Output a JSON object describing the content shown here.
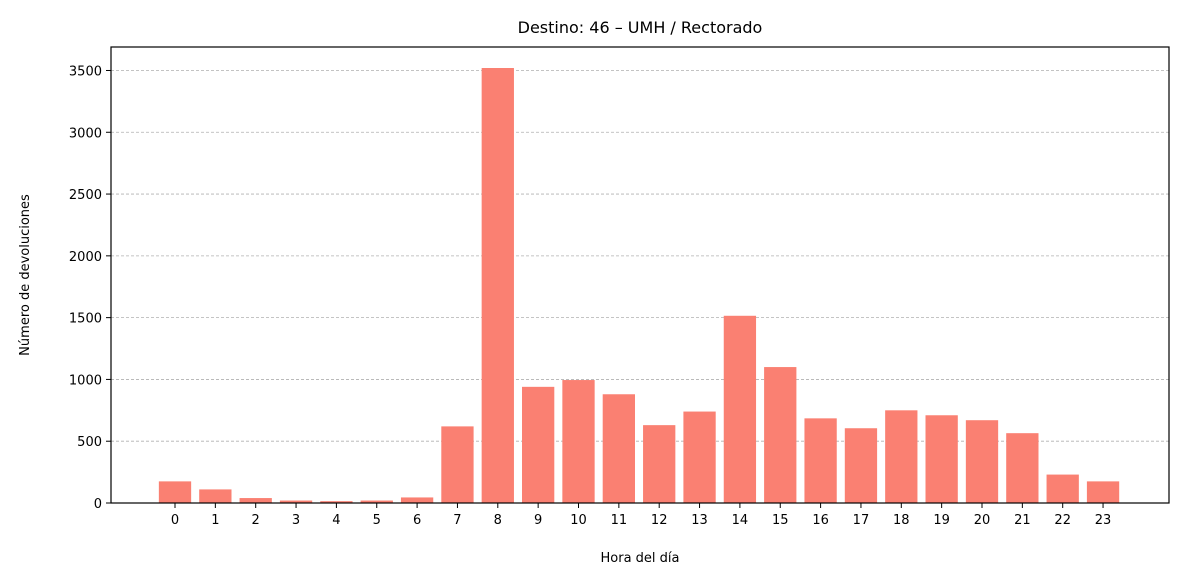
{
  "chart_data": {
    "type": "bar",
    "title": "Destino: 46 – UMH / Rectorado",
    "xlabel": "Hora del día",
    "ylabel": "Número de devoluciones",
    "categories": [
      "0",
      "1",
      "2",
      "3",
      "4",
      "5",
      "6",
      "7",
      "8",
      "9",
      "10",
      "11",
      "12",
      "13",
      "14",
      "15",
      "16",
      "17",
      "18",
      "19",
      "20",
      "21",
      "22",
      "23"
    ],
    "values": [
      175,
      110,
      40,
      20,
      15,
      20,
      45,
      620,
      3520,
      940,
      995,
      880,
      630,
      740,
      1515,
      1100,
      685,
      605,
      750,
      710,
      670,
      565,
      230,
      175
    ],
    "yticks": [
      0,
      500,
      1000,
      1500,
      2000,
      2500,
      3000,
      3500
    ],
    "ylim": [
      0,
      3690
    ],
    "grid": "horizontal dashed",
    "bar_color": "#fa8072",
    "legend": null
  }
}
